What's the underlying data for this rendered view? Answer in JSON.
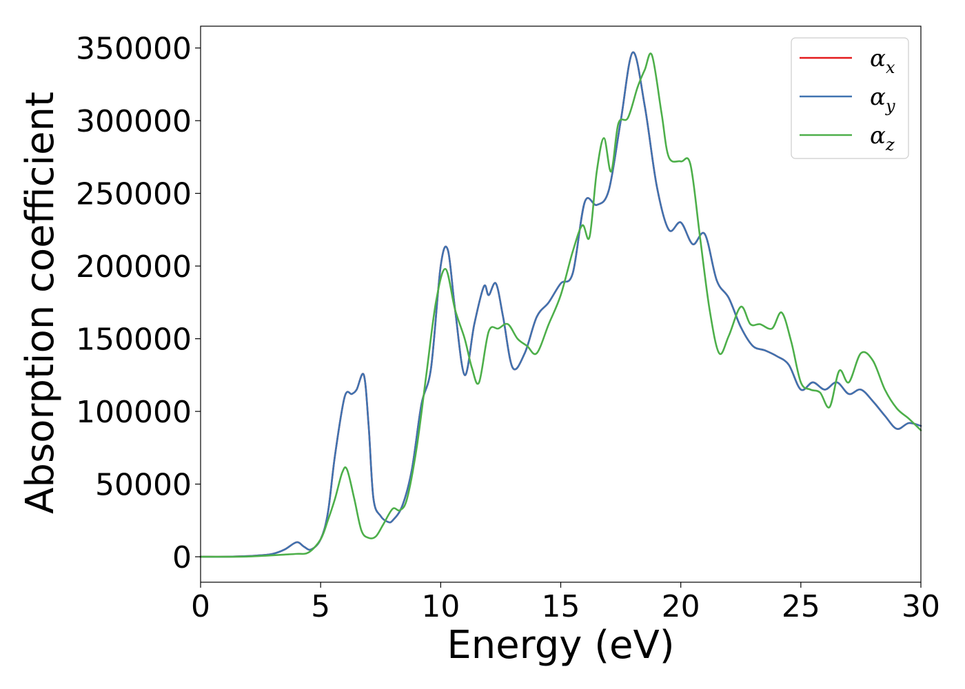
{
  "chart_data": {
    "type": "line",
    "title": "",
    "xlabel": "Energy (eV)",
    "ylabel": "Absorption coefficient",
    "xlim": [
      0,
      30
    ],
    "ylim": [
      -17500,
      365000
    ],
    "xticks": [
      0,
      5,
      10,
      15,
      20,
      25,
      30
    ],
    "yticks": [
      0,
      50000,
      100000,
      150000,
      200000,
      250000,
      300000,
      350000
    ],
    "xtick_labels": [
      "0",
      "5",
      "10",
      "15",
      "20",
      "25",
      "30"
    ],
    "ytick_labels": [
      "0",
      "50000",
      "100000",
      "150000",
      "200000",
      "250000",
      "300000",
      "350000"
    ],
    "grid": false,
    "legend_position": "top-right",
    "series": [
      {
        "name": "α",
        "sub": "x",
        "color": "#e41a1c",
        "x": [
          0,
          1,
          2,
          2.5,
          3,
          3.5,
          4,
          4.3,
          4.6,
          5,
          5.3,
          5.6,
          6,
          6.3,
          6.5,
          6.8,
          7,
          7.2,
          7.5,
          7.8,
          8,
          8.4,
          8.8,
          9.2,
          9.6,
          10,
          10.3,
          10.6,
          11,
          11.4,
          11.8,
          12,
          12.3,
          12.6,
          13,
          13.5,
          14,
          14.5,
          15,
          15.5,
          16,
          16.5,
          17,
          17.5,
          18,
          18.5,
          19,
          19.5,
          20,
          20.5,
          21,
          21.5,
          22,
          22.5,
          23,
          23.5,
          24,
          24.5,
          25,
          25.5,
          26,
          26.5,
          27,
          27.5,
          28,
          28.5,
          29,
          29.5,
          30
        ],
        "y": [
          0,
          0,
          500,
          1000,
          2000,
          5000,
          10000,
          7000,
          5000,
          12000,
          30000,
          70000,
          110000,
          112000,
          115000,
          125000,
          90000,
          40000,
          28000,
          24000,
          25000,
          35000,
          60000,
          105000,
          130000,
          200000,
          211000,
          170000,
          125000,
          160000,
          186000,
          180000,
          188000,
          165000,
          130000,
          140000,
          165000,
          175000,
          188000,
          195000,
          244000,
          242000,
          252000,
          300000,
          347000,
          310000,
          255000,
          225000,
          230000,
          215000,
          222000,
          190000,
          178000,
          158000,
          145000,
          142000,
          138000,
          132000,
          115000,
          120000,
          115000,
          120000,
          112000,
          115000,
          107000,
          97000,
          88000,
          92000,
          90000
        ]
      },
      {
        "name": "α",
        "sub": "y",
        "color": "#3f73b0",
        "x": [
          0,
          1,
          2,
          2.5,
          3,
          3.5,
          4,
          4.3,
          4.6,
          5,
          5.3,
          5.6,
          6,
          6.3,
          6.5,
          6.8,
          7,
          7.2,
          7.5,
          7.8,
          8,
          8.4,
          8.8,
          9.2,
          9.6,
          10,
          10.3,
          10.6,
          11,
          11.4,
          11.8,
          12,
          12.3,
          12.6,
          13,
          13.5,
          14,
          14.5,
          15,
          15.5,
          16,
          16.5,
          17,
          17.5,
          18,
          18.5,
          19,
          19.5,
          20,
          20.5,
          21,
          21.5,
          22,
          22.5,
          23,
          23.5,
          24,
          24.5,
          25,
          25.5,
          26,
          26.5,
          27,
          27.5,
          28,
          28.5,
          29,
          29.5,
          30
        ],
        "y": [
          0,
          0,
          500,
          1000,
          2000,
          5000,
          10000,
          7000,
          5000,
          12000,
          30000,
          70000,
          110000,
          112000,
          115000,
          125000,
          90000,
          40000,
          28000,
          24000,
          25000,
          35000,
          60000,
          105000,
          130000,
          200000,
          211000,
          170000,
          125000,
          160000,
          186000,
          180000,
          188000,
          165000,
          130000,
          140000,
          165000,
          175000,
          188000,
          195000,
          244000,
          242000,
          252000,
          300000,
          347000,
          310000,
          255000,
          225000,
          230000,
          215000,
          222000,
          190000,
          178000,
          158000,
          145000,
          142000,
          138000,
          132000,
          115000,
          120000,
          115000,
          120000,
          112000,
          115000,
          107000,
          97000,
          88000,
          92000,
          90000
        ]
      },
      {
        "name": "α",
        "sub": "z",
        "color": "#4daf4a",
        "x": [
          0,
          1,
          2,
          3,
          3.5,
          4,
          4.5,
          5,
          5.3,
          5.6,
          5.9,
          6.1,
          6.4,
          6.7,
          7,
          7.3,
          7.6,
          8,
          8.3,
          8.6,
          9,
          9.4,
          9.8,
          10.2,
          10.6,
          11,
          11.3,
          11.6,
          12,
          12.4,
          12.8,
          13.2,
          13.6,
          14,
          14.5,
          15,
          15.5,
          15.9,
          16.2,
          16.5,
          16.8,
          17.1,
          17.4,
          17.8,
          18.2,
          18.5,
          18.8,
          19.2,
          19.5,
          20,
          20.4,
          20.8,
          21.2,
          21.6,
          22,
          22.5,
          22.9,
          23.3,
          23.8,
          24.2,
          24.6,
          25,
          25.4,
          25.8,
          26.2,
          26.6,
          27,
          27.5,
          28,
          28.5,
          29,
          29.5,
          30
        ],
        "y": [
          0,
          0,
          200,
          1000,
          1500,
          2000,
          3000,
          12000,
          25000,
          40000,
          58000,
          60000,
          40000,
          18000,
          13000,
          14000,
          22000,
          33000,
          32000,
          40000,
          75000,
          125000,
          175000,
          198000,
          170000,
          150000,
          130000,
          120000,
          155000,
          157000,
          160000,
          150000,
          145000,
          140000,
          160000,
          180000,
          210000,
          228000,
          220000,
          265000,
          288000,
          265000,
          298000,
          302000,
          323000,
          335000,
          345000,
          305000,
          275000,
          272000,
          270000,
          220000,
          170000,
          140000,
          152000,
          172000,
          160000,
          160000,
          157000,
          168000,
          148000,
          120000,
          115000,
          113000,
          103000,
          128000,
          120000,
          140000,
          135000,
          115000,
          102000,
          95000,
          87000
        ]
      }
    ]
  }
}
